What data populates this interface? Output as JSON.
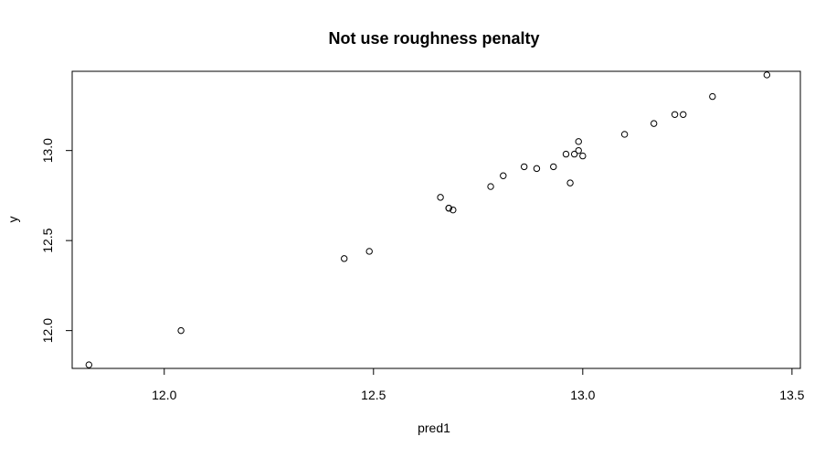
{
  "chart_data": {
    "type": "scatter",
    "title": "Not use roughness penalty",
    "xlabel": "pred1",
    "ylabel": "y",
    "xlim": [
      11.78,
      13.52
    ],
    "ylim": [
      11.79,
      13.44
    ],
    "xticks": [
      {
        "value": 12.0,
        "label": "12.0"
      },
      {
        "value": 12.5,
        "label": "12.5"
      },
      {
        "value": 13.0,
        "label": "13.0"
      },
      {
        "value": 13.5,
        "label": "13.5"
      }
    ],
    "yticks": [
      {
        "value": 12.0,
        "label": "12.0"
      },
      {
        "value": 12.5,
        "label": "12.5"
      },
      {
        "value": 13.0,
        "label": "13.0"
      }
    ],
    "marker": "open-circle",
    "grid": false,
    "points": [
      {
        "x": 11.82,
        "y": 11.81
      },
      {
        "x": 12.04,
        "y": 12.0
      },
      {
        "x": 12.43,
        "y": 12.4
      },
      {
        "x": 12.49,
        "y": 12.44
      },
      {
        "x": 12.66,
        "y": 12.74
      },
      {
        "x": 12.68,
        "y": 12.68
      },
      {
        "x": 12.69,
        "y": 12.67
      },
      {
        "x": 12.68,
        "y": 12.68
      },
      {
        "x": 12.78,
        "y": 12.8
      },
      {
        "x": 12.81,
        "y": 12.86
      },
      {
        "x": 12.86,
        "y": 12.91
      },
      {
        "x": 12.89,
        "y": 12.9
      },
      {
        "x": 12.93,
        "y": 12.91
      },
      {
        "x": 12.96,
        "y": 12.98
      },
      {
        "x": 12.97,
        "y": 12.82
      },
      {
        "x": 12.98,
        "y": 12.98
      },
      {
        "x": 12.99,
        "y": 13.0
      },
      {
        "x": 12.99,
        "y": 13.05
      },
      {
        "x": 13.0,
        "y": 12.97
      },
      {
        "x": 13.1,
        "y": 13.09
      },
      {
        "x": 13.17,
        "y": 13.15
      },
      {
        "x": 13.22,
        "y": 13.2
      },
      {
        "x": 13.24,
        "y": 13.2
      },
      {
        "x": 13.31,
        "y": 13.3
      },
      {
        "x": 13.44,
        "y": 13.42
      }
    ]
  }
}
